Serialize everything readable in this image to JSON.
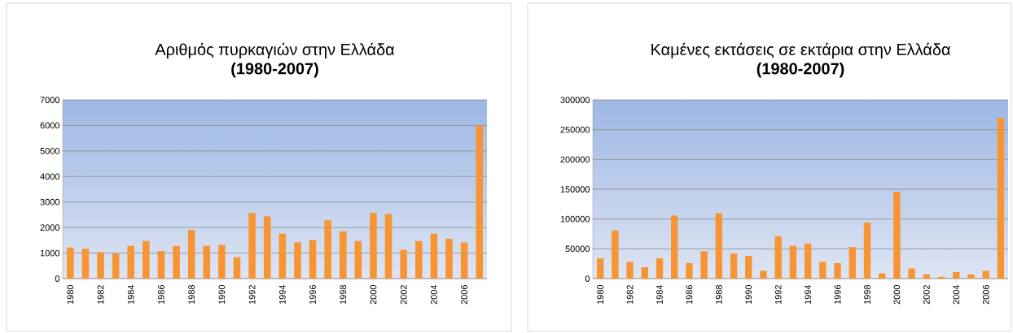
{
  "chart_data": [
    {
      "type": "bar",
      "title": "Αριθμός πυρκαγιών στην Ελλάδα",
      "subtitle": "(1980-2007)",
      "categories": [
        "1980",
        null,
        "1982",
        null,
        "1984",
        null,
        "1986",
        null,
        "1988",
        null,
        "1990",
        null,
        "1992",
        null,
        "1994",
        null,
        "1996",
        null,
        "1998",
        null,
        "2000",
        null,
        "2002",
        null,
        "2004",
        null,
        "2006",
        null
      ],
      "values": [
        1220,
        1170,
        1030,
        980,
        1280,
        1470,
        1080,
        1280,
        1900,
        1280,
        1320,
        840,
        2570,
        2440,
        1760,
        1420,
        1510,
        2280,
        1850,
        1470,
        2570,
        2530,
        1130,
        1470,
        1760,
        1560,
        1420,
        6000
      ],
      "color": "#f79433",
      "ylim": [
        0,
        7000
      ],
      "yticks": [
        0,
        1000,
        2000,
        3000,
        4000,
        5000,
        6000,
        7000
      ],
      "grid": "y"
    },
    {
      "type": "bar",
      "title": "Καμένες εκτάσεις σε εκτάρια στην Ελλάδα",
      "subtitle": "(1980-2007)",
      "categories": [
        "1980",
        null,
        "1982",
        null,
        "1984",
        null,
        "1986",
        null,
        "1988",
        null,
        "1990",
        null,
        "1992",
        null,
        "1994",
        null,
        "1996",
        null,
        "1998",
        null,
        "2000",
        null,
        "2002",
        null,
        "2004",
        null,
        "2006",
        null
      ],
      "values": [
        34000,
        81000,
        28000,
        19000,
        34000,
        106000,
        26000,
        46000,
        110000,
        42000,
        38000,
        13000,
        71000,
        55000,
        59000,
        28000,
        26000,
        53000,
        94000,
        9000,
        146000,
        17000,
        7000,
        3000,
        11000,
        7000,
        13000,
        270000
      ],
      "color": "#f79433",
      "ylim": [
        0,
        300000
      ],
      "yticks": [
        0,
        50000,
        100000,
        150000,
        200000,
        250000,
        300000
      ],
      "grid": "y"
    }
  ]
}
